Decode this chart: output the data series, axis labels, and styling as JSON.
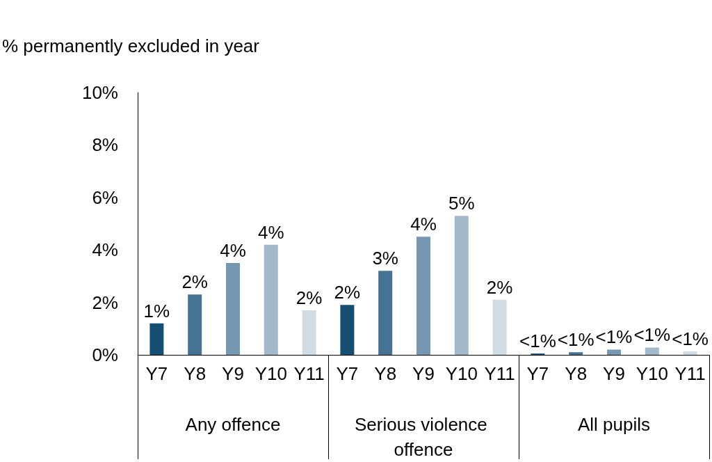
{
  "chart_data": {
    "type": "bar",
    "ylabel": "% permanently excluded in year",
    "categories": [
      "Any offence",
      "Serious violence offence",
      "All pupils"
    ],
    "series": [
      {
        "name": "Y7",
        "color": "#174f73",
        "values": [
          1.2,
          1.9,
          0.05
        ],
        "value_labels": [
          "1%",
          "2%",
          "<1%"
        ]
      },
      {
        "name": "Y8",
        "color": "#467394",
        "values": [
          2.3,
          3.2,
          0.1
        ],
        "value_labels": [
          "2%",
          "3%",
          "<1%"
        ]
      },
      {
        "name": "Y9",
        "color": "#7697b2",
        "values": [
          3.5,
          4.5,
          0.2
        ],
        "value_labels": [
          "4%",
          "4%",
          "<1%"
        ]
      },
      {
        "name": "Y10",
        "color": "#a3b9ca",
        "values": [
          4.2,
          5.3,
          0.28
        ],
        "value_labels": [
          "4%",
          "5%",
          "<1%"
        ]
      },
      {
        "name": "Y11",
        "color": "#d0dce4",
        "values": [
          1.7,
          2.1,
          0.13
        ],
        "value_labels": [
          "2%",
          "2%",
          "<1%"
        ]
      }
    ],
    "ylim": [
      0,
      10
    ],
    "yticks": [
      {
        "value": 0,
        "label": "0%"
      },
      {
        "value": 2,
        "label": "2%"
      },
      {
        "value": 4,
        "label": "4%"
      },
      {
        "value": 6,
        "label": "6%"
      },
      {
        "value": 8,
        "label": "8%"
      },
      {
        "value": 10,
        "label": "10%"
      }
    ],
    "grid": false,
    "legend": false
  }
}
